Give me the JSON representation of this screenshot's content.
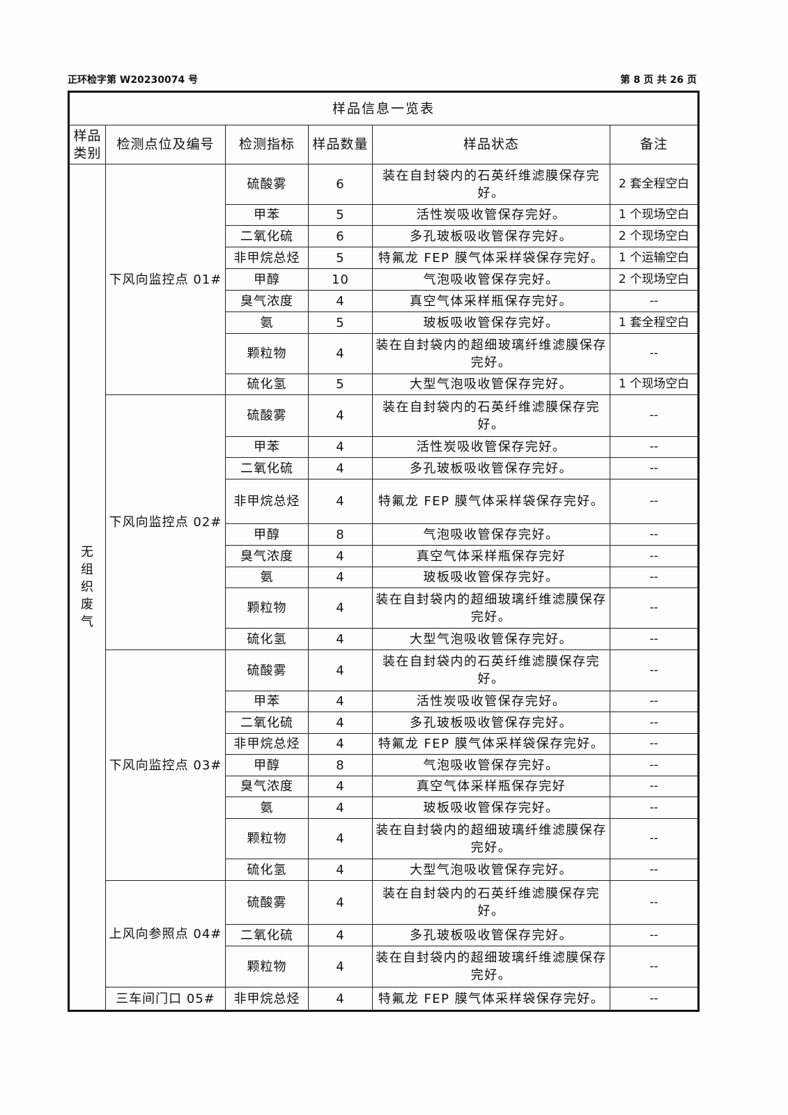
{
  "header": {
    "doc_number": "正环检字第 W20230074 号",
    "page": "第 8 页  共 26 页"
  },
  "table": {
    "title": "样品信息一览表",
    "columns": [
      "样品类别",
      "检测点位及编号",
      "检测指标",
      "样品数量",
      "样品状态",
      "备注"
    ],
    "category": "无组织废气",
    "groups": [
      {
        "point": "下风向监控点 01#",
        "rows": [
          {
            "indicator": "硫酸雾",
            "qty": "6",
            "status": "装在自封袋内的石英纤维滤膜保存完好。",
            "remark": "2 套全程空白"
          },
          {
            "indicator": "甲苯",
            "qty": "5",
            "status": "活性炭吸收管保存完好。",
            "remark": "1 个现场空白"
          },
          {
            "indicator": "二氧化硫",
            "qty": "6",
            "status": "多孔玻板吸收管保存完好。",
            "remark": "2 个现场空白"
          },
          {
            "indicator": "非甲烷总烃",
            "qty": "5",
            "status": "特氟龙 FEP 膜气体采样袋保存完好。",
            "remark": "1 个运输空白"
          },
          {
            "indicator": "甲醇",
            "qty": "10",
            "status": "气泡吸收管保存完好。",
            "remark": "2 个现场空白"
          },
          {
            "indicator": "臭气浓度",
            "qty": "4",
            "status": "真空气体采样瓶保存完好。",
            "remark": "--"
          },
          {
            "indicator": "氨",
            "qty": "5",
            "status": "玻板吸收管保存完好。",
            "remark": "1 套全程空白"
          },
          {
            "indicator": "颗粒物",
            "qty": "4",
            "status": "装在自封袋内的超细玻璃纤维滤膜保存完好。",
            "remark": "--"
          },
          {
            "indicator": "硫化氢",
            "qty": "5",
            "status": "大型气泡吸收管保存完好。",
            "remark": "1 个现场空白"
          }
        ]
      },
      {
        "point": "下风向监控点 02#",
        "rows": [
          {
            "indicator": "硫酸雾",
            "qty": "4",
            "status": "装在自封袋内的石英纤维滤膜保存完好。",
            "remark": "--"
          },
          {
            "indicator": "甲苯",
            "qty": "4",
            "status": "活性炭吸收管保存完好。",
            "remark": "--"
          },
          {
            "indicator": "二氧化硫",
            "qty": "4",
            "status": "多孔玻板吸收管保存完好。",
            "remark": "--"
          },
          {
            "indicator": "非甲烷总烃",
            "qty": "4",
            "status": "特氟龙 FEP 膜气体采样袋保存完好。",
            "remark": "--"
          },
          {
            "indicator": "甲醇",
            "qty": "8",
            "status": "气泡吸收管保存完好。",
            "remark": "--"
          },
          {
            "indicator": "臭气浓度",
            "qty": "4",
            "status": "真空气体采样瓶保存完好",
            "remark": "--"
          },
          {
            "indicator": "氨",
            "qty": "4",
            "status": "玻板吸收管保存完好。",
            "remark": "--"
          },
          {
            "indicator": "颗粒物",
            "qty": "4",
            "status": "装在自封袋内的超细玻璃纤维滤膜保存完好。",
            "remark": "--"
          },
          {
            "indicator": "硫化氢",
            "qty": "4",
            "status": "大型气泡吸收管保存完好。",
            "remark": "--"
          }
        ]
      },
      {
        "point": "下风向监控点 03#",
        "rows": [
          {
            "indicator": "硫酸雾",
            "qty": "4",
            "status": "装在自封袋内的石英纤维滤膜保存完好。",
            "remark": "--"
          },
          {
            "indicator": "甲苯",
            "qty": "4",
            "status": "活性炭吸收管保存完好。",
            "remark": "--"
          },
          {
            "indicator": "二氧化硫",
            "qty": "4",
            "status": "多孔玻板吸收管保存完好。",
            "remark": "--"
          },
          {
            "indicator": "非甲烷总烃",
            "qty": "4",
            "status": "特氟龙 FEP 膜气体采样袋保存完好。",
            "remark": "--"
          },
          {
            "indicator": "甲醇",
            "qty": "8",
            "status": "气泡吸收管保存完好。",
            "remark": "--"
          },
          {
            "indicator": "臭气浓度",
            "qty": "4",
            "status": "真空气体采样瓶保存完好",
            "remark": "--"
          },
          {
            "indicator": "氨",
            "qty": "4",
            "status": "玻板吸收管保存完好。",
            "remark": "--"
          },
          {
            "indicator": "颗粒物",
            "qty": "4",
            "status": "装在自封袋内的超细玻璃纤维滤膜保存完好。",
            "remark": "--"
          },
          {
            "indicator": "硫化氢",
            "qty": "4",
            "status": "大型气泡吸收管保存完好。",
            "remark": "--"
          }
        ]
      },
      {
        "point": "上风向参照点 04#",
        "rows": [
          {
            "indicator": "硫酸雾",
            "qty": "4",
            "status": "装在自封袋内的石英纤维滤膜保存完好。",
            "remark": "--"
          },
          {
            "indicator": "二氧化硫",
            "qty": "4",
            "status": "多孔玻板吸收管保存完好。",
            "remark": "--"
          },
          {
            "indicator": "颗粒物",
            "qty": "4",
            "status": "装在自封袋内的超细玻璃纤维滤膜保存完好。",
            "remark": "--"
          }
        ]
      },
      {
        "point": "三车间门口 05#",
        "rows": [
          {
            "indicator": "非甲烷总烃",
            "qty": "4",
            "status": "特氟龙 FEP 膜气体采样袋保存完好。",
            "remark": "--"
          }
        ]
      }
    ]
  }
}
